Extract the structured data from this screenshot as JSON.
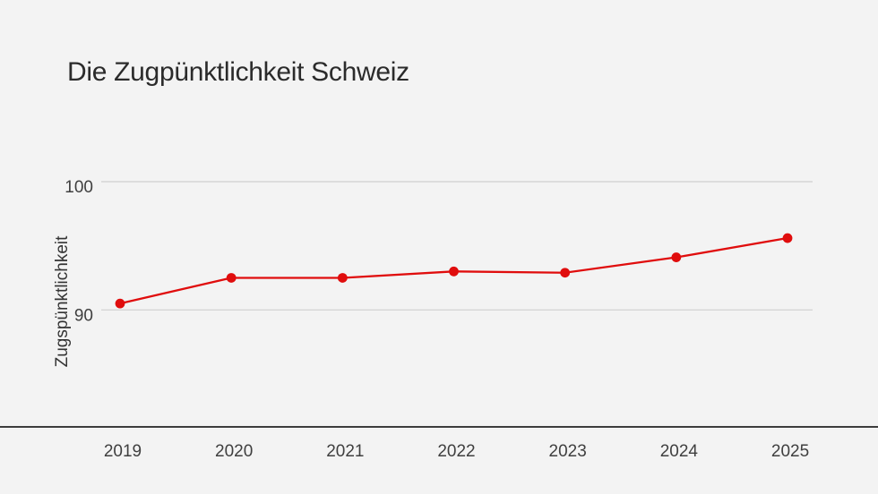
{
  "header": {
    "title": "Die Zugpünktlichkeit Schweiz"
  },
  "colors": {
    "background": "#f3f3f3",
    "accent_red": "#e00d0d",
    "grid": "#cfcfcf",
    "axis": "#3c3c3c",
    "text": "#2b2b2b",
    "tick_text": "#3f3f3f"
  },
  "chart_data": {
    "type": "line",
    "title": "Die Zugpünktlichkeit Schweiz",
    "categories": [
      "2019",
      "2020",
      "2021",
      "2022",
      "2023",
      "2024",
      "2025"
    ],
    "series": [
      {
        "name": "Zugspünktlichkeit",
        "values": [
          90.5,
          92.5,
          92.5,
          93.0,
          92.9,
          94.1,
          95.6
        ]
      }
    ],
    "xlabel": "",
    "ylabel": "Zugspünktlichkeit",
    "yticks": [
      100,
      90
    ],
    "ylim": [
      81,
      102
    ],
    "grid": "horizontal",
    "legend": "none",
    "marker": "circle"
  }
}
